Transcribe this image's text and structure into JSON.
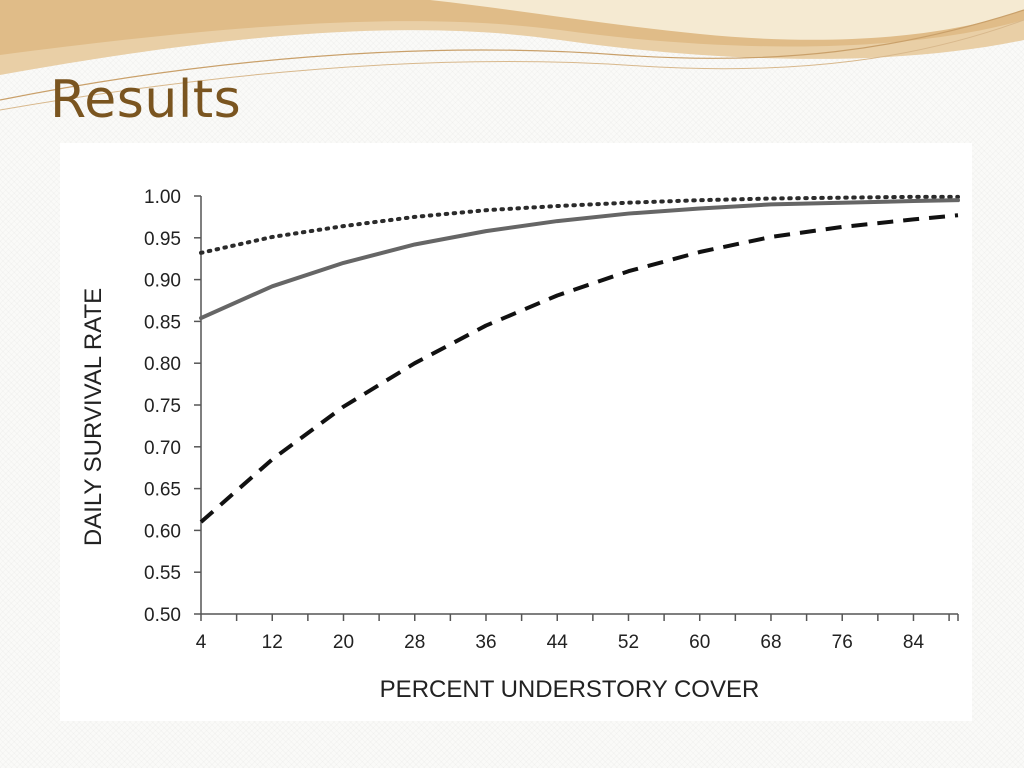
{
  "slide": {
    "title": "Results",
    "title_color": "#7a5520",
    "header_colors": [
      "#e6c9a0",
      "#d9b27a",
      "#f3e4c6"
    ]
  },
  "chart_data": {
    "type": "line",
    "title": "",
    "xlabel": "PERCENT UNDERSTORY COVER",
    "ylabel": "DAILY SURVIVAL RATE",
    "xlim": [
      4,
      89
    ],
    "ylim": [
      0.5,
      1.0
    ],
    "x_ticks": [
      4,
      12,
      20,
      28,
      36,
      44,
      52,
      60,
      68,
      76,
      84
    ],
    "y_ticks": [
      "0.50",
      "0.55",
      "0.60",
      "0.65",
      "0.70",
      "0.75",
      "0.80",
      "0.85",
      "0.90",
      "0.95",
      "1.00"
    ],
    "grid": false,
    "legend": "none",
    "series": [
      {
        "style": "dotted",
        "color": "#2b2b2b",
        "x": [
          4,
          12,
          20,
          28,
          36,
          44,
          52,
          60,
          68,
          76,
          84,
          89
        ],
        "y": [
          0.932,
          0.951,
          0.964,
          0.975,
          0.983,
          0.988,
          0.992,
          0.995,
          0.997,
          0.998,
          0.999,
          0.999
        ]
      },
      {
        "style": "solid",
        "color": "#666666",
        "x": [
          4,
          12,
          20,
          28,
          36,
          44,
          52,
          60,
          68,
          76,
          84,
          89
        ],
        "y": [
          0.854,
          0.892,
          0.92,
          0.942,
          0.958,
          0.97,
          0.979,
          0.985,
          0.99,
          0.992,
          0.994,
          0.995
        ]
      },
      {
        "style": "dashed",
        "color": "#111111",
        "x": [
          4,
          12,
          20,
          28,
          36,
          44,
          52,
          60,
          68,
          76,
          84,
          89
        ],
        "y": [
          0.61,
          0.685,
          0.748,
          0.8,
          0.845,
          0.881,
          0.91,
          0.933,
          0.951,
          0.963,
          0.972,
          0.977
        ]
      }
    ]
  }
}
